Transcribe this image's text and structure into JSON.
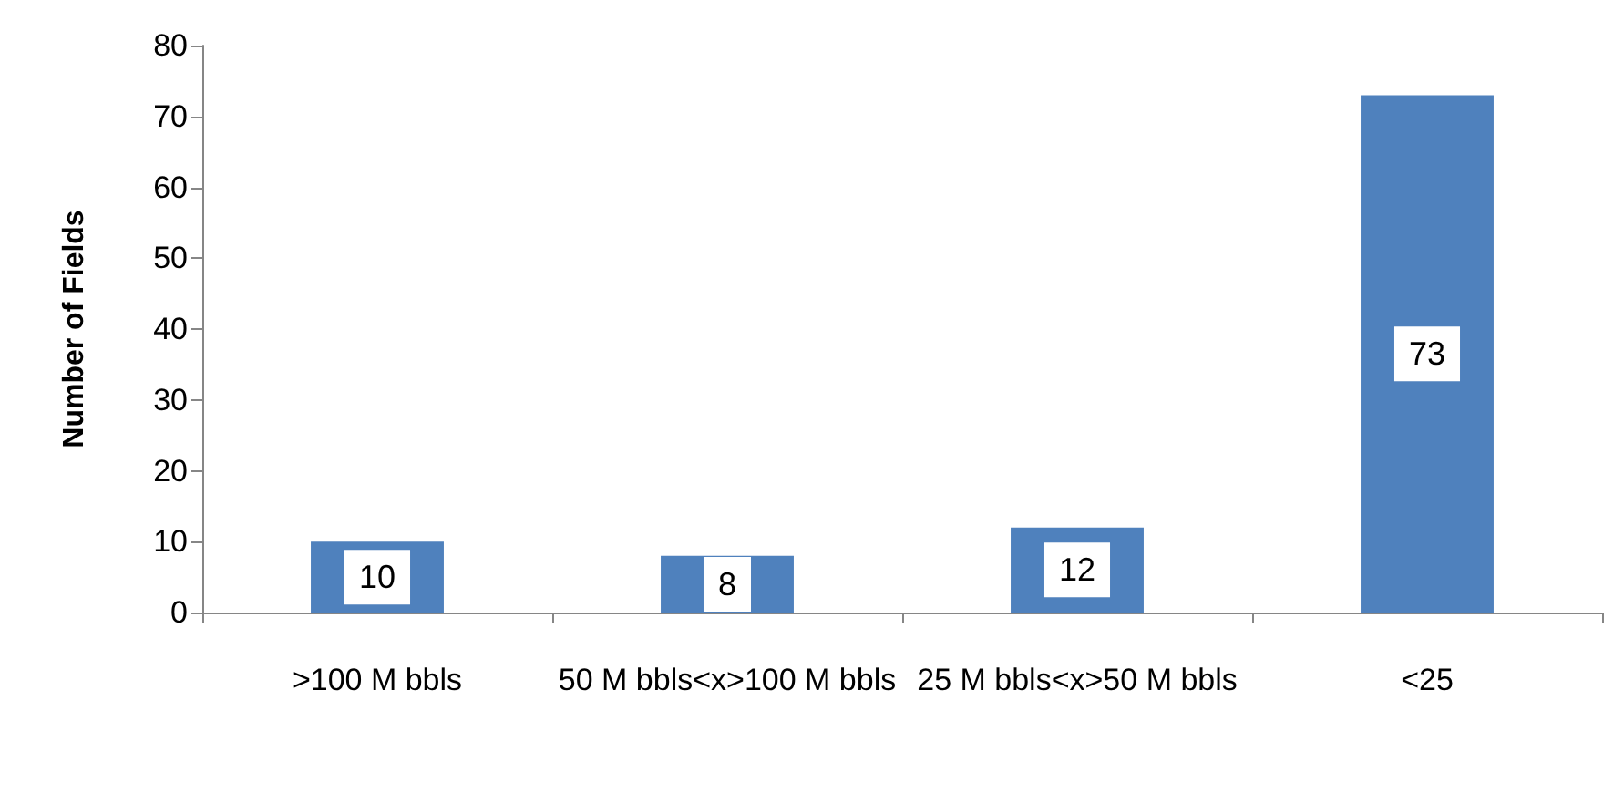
{
  "chart_data": {
    "type": "bar",
    "ylabel": "Number of Fields",
    "categories": [
      ">100 M bbls",
      "50 M bbls<x>100 M bbls",
      "25 M bbls<x>50 M bbls",
      "<25"
    ],
    "values": [
      10,
      8,
      12,
      73
    ],
    "color": "#4f81bd",
    "ylim": [
      0,
      80
    ],
    "yticks": [
      0,
      10,
      20,
      30,
      40,
      50,
      60,
      70,
      80
    ],
    "grid": false,
    "data_labels": true
  }
}
